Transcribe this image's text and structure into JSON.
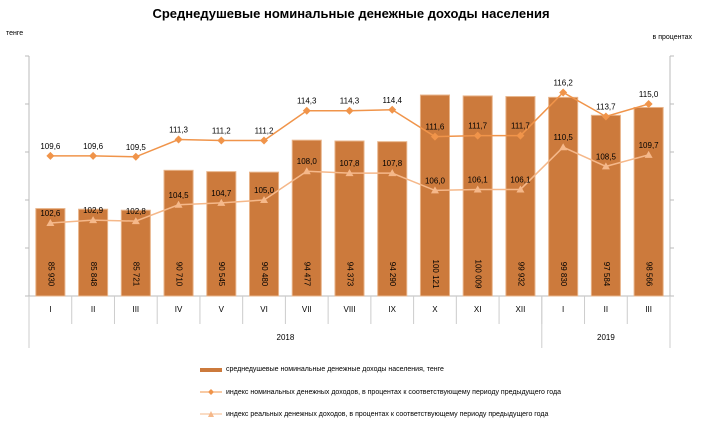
{
  "chart_data": {
    "type": "bar+line",
    "title": "Среднедушевые номинальные денежные доходы населения",
    "y_left_label": "тенге",
    "y_right_label": "в процентах",
    "ylim_left": [
      75000,
      105000
    ],
    "ylim_right": [
      95,
      120
    ],
    "categories": [
      "I",
      "II",
      "III",
      "IV",
      "V",
      "VI",
      "VII",
      "VIII",
      "IX",
      "X",
      "XI",
      "XII",
      "I",
      "II",
      "III"
    ],
    "years": [
      {
        "label": "2018",
        "count": 12
      },
      {
        "label": "2019",
        "count": 3
      }
    ],
    "series": [
      {
        "name": "среднедушевые номинальные денежные доходы населения, тенге",
        "type": "bar",
        "color": "#CC7A3C",
        "values": [
          85930,
          85848,
          85721,
          90710,
          90545,
          90480,
          94477,
          94373,
          94290,
          100121,
          100009,
          99932,
          99830,
          97584,
          98566
        ],
        "labels": [
          "85 930",
          "85 848",
          "85 721",
          "90 710",
          "90 545",
          "90 480",
          "94 477",
          "94 373",
          "94 290",
          "100 121",
          "100 009",
          "99 932",
          "99 830",
          "97 584",
          "98 566"
        ]
      },
      {
        "name": "индекс номинальных денежных доходов, в процентах к соответствующему периоду предыдущего года",
        "type": "line",
        "marker": "diamond",
        "color": "#F0944A",
        "values": [
          109.6,
          109.6,
          109.5,
          111.3,
          111.2,
          111.2,
          114.3,
          114.3,
          114.4,
          111.6,
          111.7,
          111.7,
          116.2,
          113.7,
          115.0
        ],
        "labels": [
          "109,6",
          "109,6",
          "109,5",
          "111,3",
          "111,2",
          "111,2",
          "114,3",
          "114,3",
          "114,4",
          "111,6",
          "111,7",
          "111,7",
          "116,2",
          "113,7",
          "115,0"
        ]
      },
      {
        "name": "индекс реальных денежных доходов, в процентах к соответствующему периоду предыдущего года",
        "type": "line",
        "marker": "triangle",
        "color": "#F5B88A",
        "values": [
          102.6,
          102.9,
          102.8,
          104.5,
          104.7,
          105.0,
          108.0,
          107.8,
          107.8,
          106.0,
          106.1,
          106.1,
          110.5,
          108.5,
          109.7
        ],
        "labels": [
          "102,6",
          "102,9",
          "102,8",
          "104,5",
          "104,7",
          "105,0",
          "108,0",
          "107,8",
          "107,8",
          "106,0",
          "106,1",
          "106,1",
          "110,5",
          "108,5",
          "109,7"
        ]
      }
    ]
  }
}
